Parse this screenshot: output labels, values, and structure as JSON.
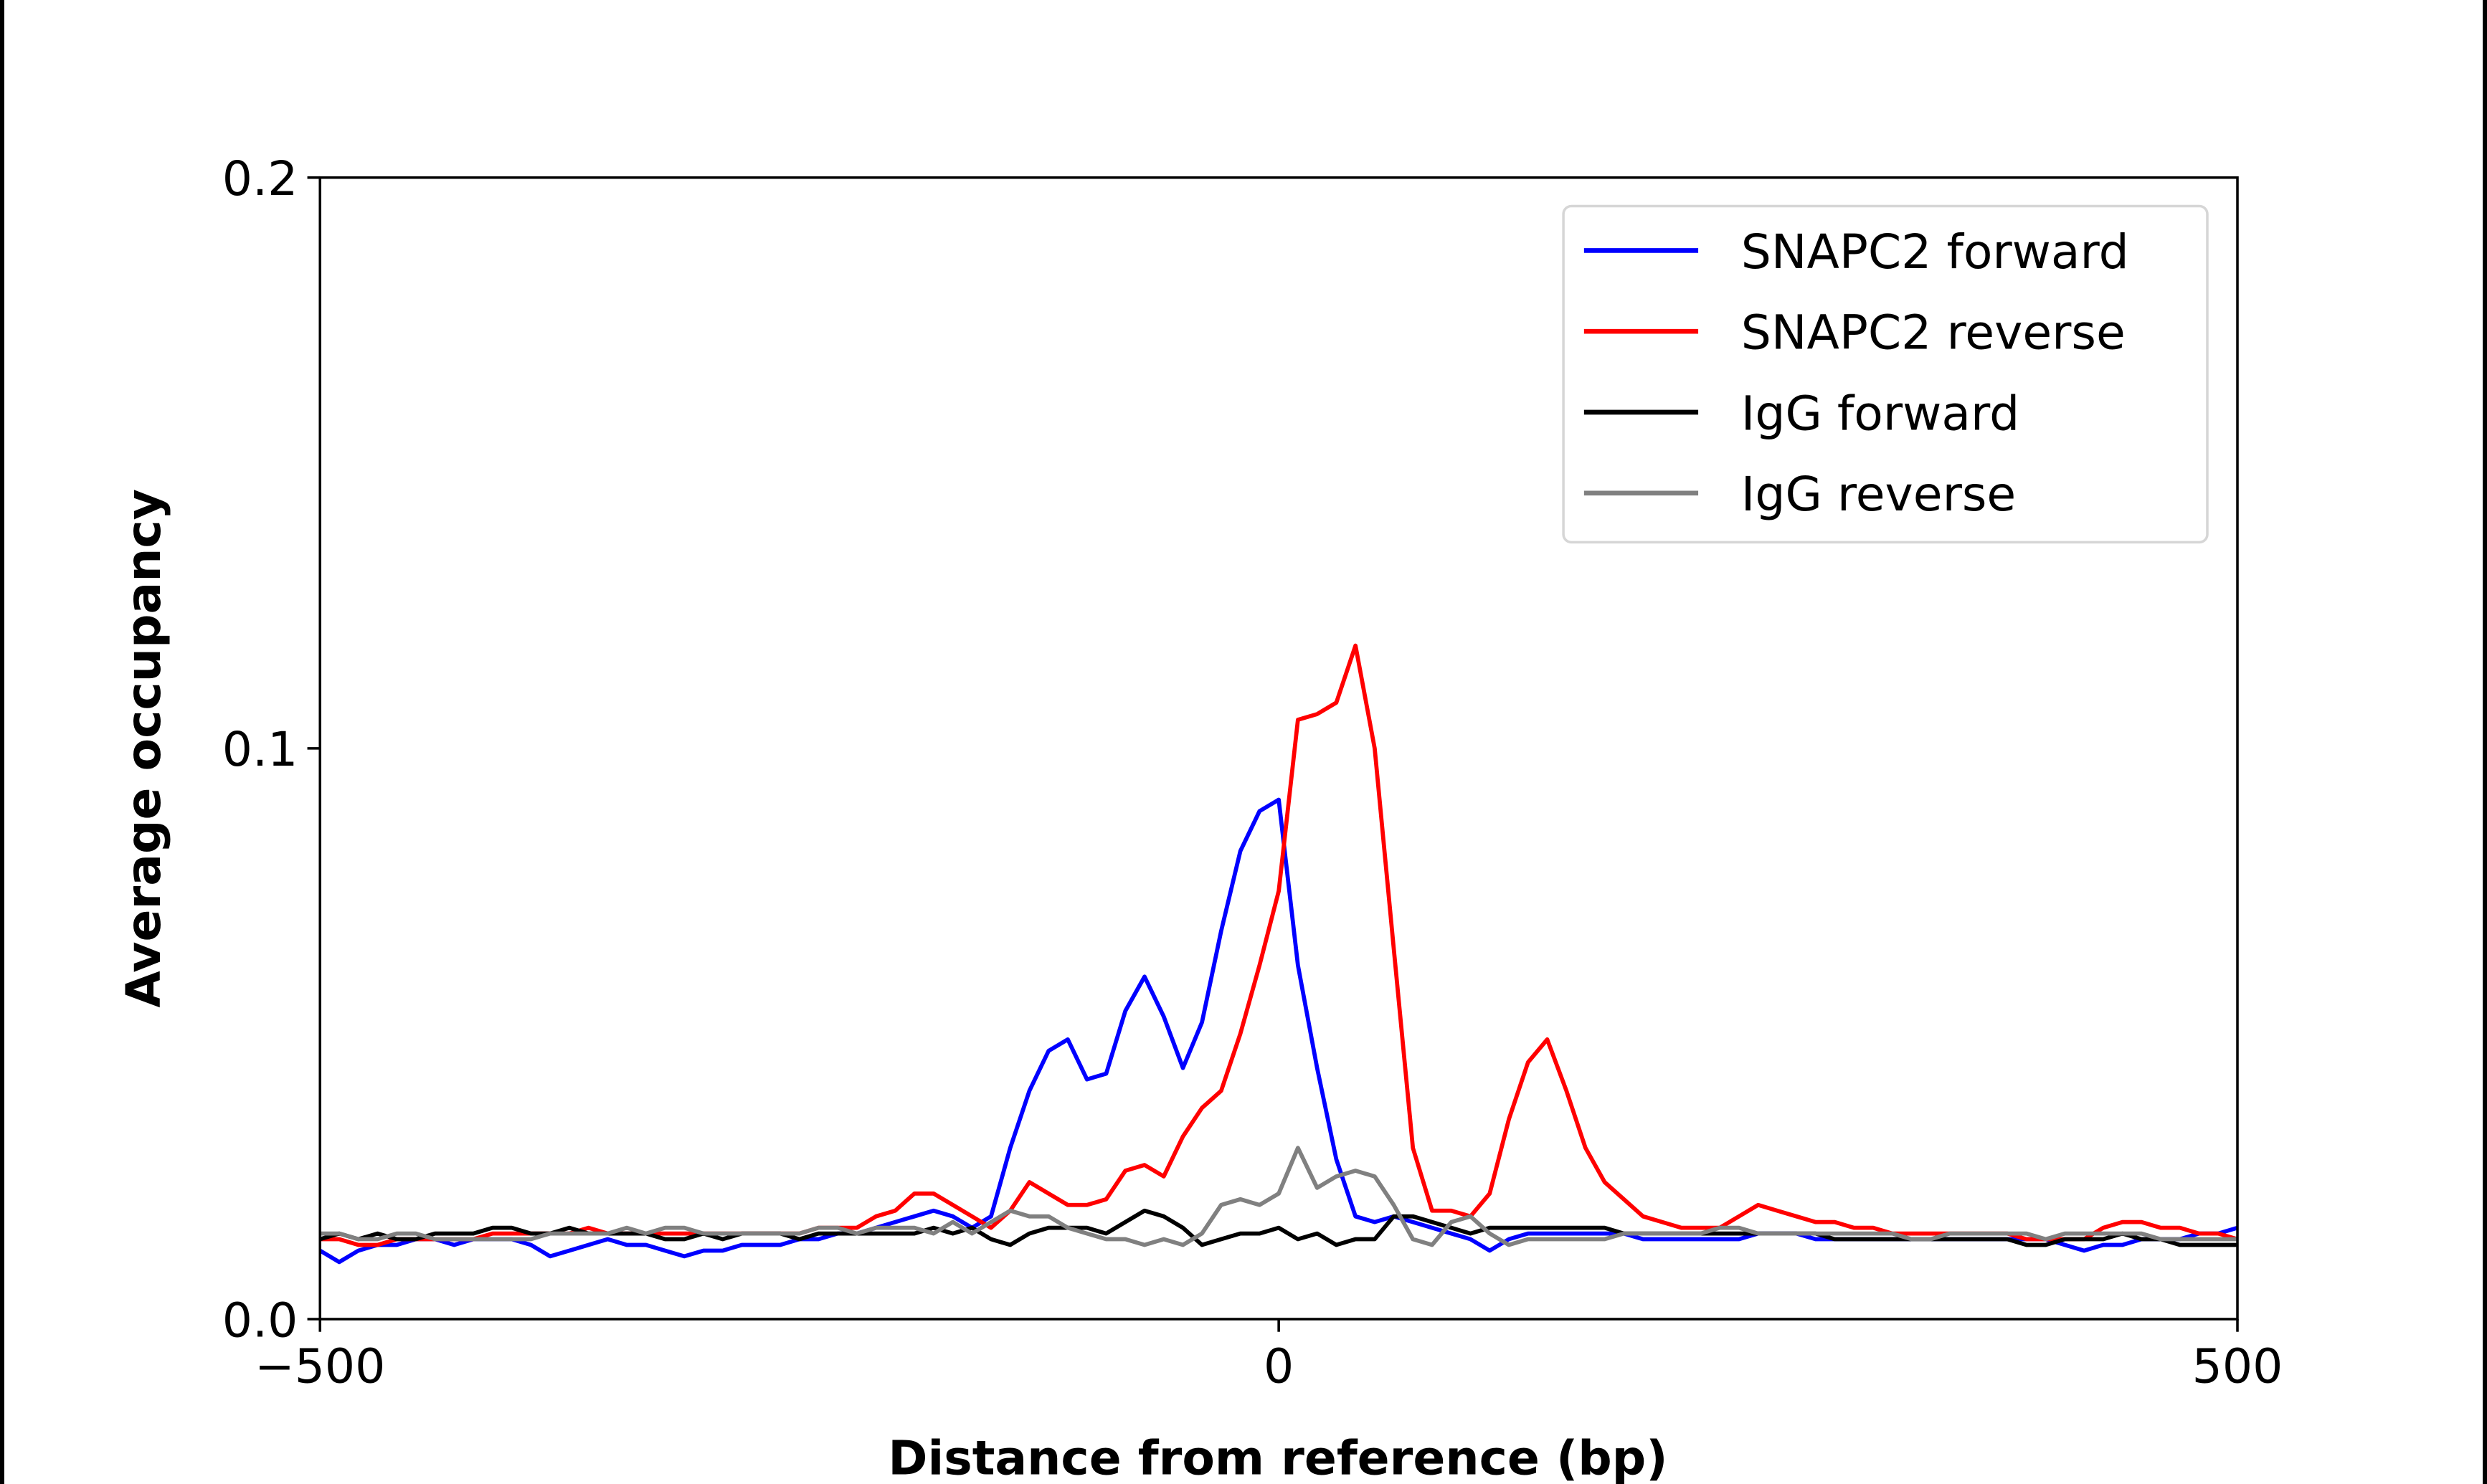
{
  "chart_data": {
    "type": "line",
    "title": "",
    "xlabel": "Distance from reference (bp)",
    "ylabel": "Average occupancy",
    "xlim": [
      -500,
      500
    ],
    "ylim": [
      0.0,
      0.2
    ],
    "xticks": [
      -500,
      0,
      500
    ],
    "xtick_labels": [
      "−500",
      "0",
      "500"
    ],
    "yticks": [
      0.0,
      0.1,
      0.2
    ],
    "ytick_labels": [
      "0.0",
      "0.1",
      "0.2"
    ],
    "grid": false,
    "legend_position": "top-right",
    "x": [
      -500,
      -490,
      -480,
      -470,
      -460,
      -450,
      -440,
      -430,
      -420,
      -410,
      -400,
      -390,
      -380,
      -370,
      -360,
      -350,
      -340,
      -330,
      -320,
      -310,
      -300,
      -290,
      -280,
      -270,
      -260,
      -250,
      -240,
      -230,
      -220,
      -210,
      -200,
      -190,
      -180,
      -170,
      -160,
      -150,
      -140,
      -130,
      -120,
      -110,
      -100,
      -90,
      -80,
      -70,
      -60,
      -50,
      -40,
      -30,
      -20,
      -10,
      0,
      10,
      20,
      30,
      40,
      50,
      60,
      70,
      80,
      90,
      100,
      110,
      120,
      130,
      140,
      150,
      160,
      170,
      180,
      190,
      200,
      210,
      220,
      230,
      240,
      250,
      260,
      270,
      280,
      290,
      300,
      310,
      320,
      330,
      340,
      350,
      360,
      370,
      380,
      390,
      400,
      410,
      420,
      430,
      440,
      450,
      460,
      470,
      480,
      490,
      500
    ],
    "series": [
      {
        "name": "SNAPC2 forward",
        "color": "#0000ff",
        "values": [
          0.012,
          0.01,
          0.012,
          0.013,
          0.013,
          0.014,
          0.014,
          0.013,
          0.014,
          0.014,
          0.014,
          0.013,
          0.011,
          0.012,
          0.013,
          0.014,
          0.013,
          0.013,
          0.012,
          0.011,
          0.012,
          0.012,
          0.013,
          0.013,
          0.013,
          0.014,
          0.014,
          0.015,
          0.015,
          0.016,
          0.017,
          0.018,
          0.019,
          0.018,
          0.016,
          0.018,
          0.03,
          0.04,
          0.047,
          0.049,
          0.042,
          0.043,
          0.054,
          0.06,
          0.053,
          0.044,
          0.052,
          0.068,
          0.082,
          0.089,
          0.091,
          0.062,
          0.044,
          0.028,
          0.018,
          0.017,
          0.018,
          0.017,
          0.016,
          0.015,
          0.014,
          0.012,
          0.014,
          0.015,
          0.015,
          0.015,
          0.015,
          0.015,
          0.015,
          0.014,
          0.014,
          0.014,
          0.014,
          0.014,
          0.014,
          0.015,
          0.015,
          0.015,
          0.014,
          0.014,
          0.014,
          0.014,
          0.014,
          0.014,
          0.014,
          0.014,
          0.014,
          0.014,
          0.014,
          0.014,
          0.014,
          0.013,
          0.012,
          0.013,
          0.013,
          0.014,
          0.014,
          0.014,
          0.015,
          0.015,
          0.016
        ]
      },
      {
        "name": "SNAPC2 reverse",
        "color": "#ff0000",
        "values": [
          0.014,
          0.014,
          0.013,
          0.013,
          0.014,
          0.014,
          0.014,
          0.014,
          0.014,
          0.015,
          0.015,
          0.015,
          0.015,
          0.015,
          0.016,
          0.015,
          0.015,
          0.015,
          0.015,
          0.015,
          0.015,
          0.015,
          0.015,
          0.015,
          0.015,
          0.015,
          0.016,
          0.016,
          0.016,
          0.018,
          0.019,
          0.022,
          0.022,
          0.02,
          0.018,
          0.016,
          0.019,
          0.024,
          0.022,
          0.02,
          0.02,
          0.021,
          0.026,
          0.027,
          0.025,
          0.032,
          0.037,
          0.04,
          0.05,
          0.062,
          0.075,
          0.105,
          0.106,
          0.108,
          0.118,
          0.1,
          0.065,
          0.03,
          0.019,
          0.019,
          0.018,
          0.022,
          0.035,
          0.045,
          0.049,
          0.04,
          0.03,
          0.024,
          0.021,
          0.018,
          0.017,
          0.016,
          0.016,
          0.016,
          0.018,
          0.02,
          0.019,
          0.018,
          0.017,
          0.017,
          0.016,
          0.016,
          0.015,
          0.015,
          0.015,
          0.015,
          0.015,
          0.015,
          0.015,
          0.014,
          0.014,
          0.014,
          0.014,
          0.016,
          0.017,
          0.017,
          0.016,
          0.016,
          0.015,
          0.015,
          0.014
        ]
      },
      {
        "name": "IgG forward",
        "color": "#000000",
        "values": [
          0.014,
          0.015,
          0.014,
          0.015,
          0.014,
          0.014,
          0.015,
          0.015,
          0.015,
          0.016,
          0.016,
          0.015,
          0.015,
          0.016,
          0.015,
          0.015,
          0.015,
          0.015,
          0.014,
          0.014,
          0.015,
          0.014,
          0.015,
          0.015,
          0.015,
          0.014,
          0.015,
          0.015,
          0.015,
          0.015,
          0.015,
          0.015,
          0.016,
          0.015,
          0.016,
          0.014,
          0.013,
          0.015,
          0.016,
          0.016,
          0.016,
          0.015,
          0.017,
          0.019,
          0.018,
          0.016,
          0.013,
          0.014,
          0.015,
          0.015,
          0.016,
          0.014,
          0.015,
          0.013,
          0.014,
          0.014,
          0.018,
          0.018,
          0.017,
          0.016,
          0.015,
          0.016,
          0.016,
          0.016,
          0.016,
          0.016,
          0.016,
          0.016,
          0.015,
          0.015,
          0.015,
          0.015,
          0.015,
          0.015,
          0.015,
          0.015,
          0.015,
          0.015,
          0.015,
          0.014,
          0.014,
          0.014,
          0.014,
          0.014,
          0.014,
          0.014,
          0.014,
          0.014,
          0.014,
          0.013,
          0.013,
          0.014,
          0.014,
          0.014,
          0.015,
          0.014,
          0.014,
          0.013,
          0.013,
          0.013,
          0.013
        ]
      },
      {
        "name": "IgG reverse",
        "color": "#808080",
        "values": [
          0.015,
          0.015,
          0.014,
          0.014,
          0.015,
          0.015,
          0.014,
          0.014,
          0.014,
          0.014,
          0.014,
          0.014,
          0.015,
          0.015,
          0.015,
          0.015,
          0.016,
          0.015,
          0.016,
          0.016,
          0.015,
          0.015,
          0.015,
          0.015,
          0.015,
          0.015,
          0.016,
          0.016,
          0.015,
          0.016,
          0.016,
          0.016,
          0.015,
          0.017,
          0.015,
          0.017,
          0.019,
          0.018,
          0.018,
          0.016,
          0.015,
          0.014,
          0.014,
          0.013,
          0.014,
          0.013,
          0.015,
          0.02,
          0.021,
          0.02,
          0.022,
          0.03,
          0.023,
          0.025,
          0.026,
          0.025,
          0.02,
          0.014,
          0.013,
          0.017,
          0.018,
          0.015,
          0.013,
          0.014,
          0.014,
          0.014,
          0.014,
          0.014,
          0.015,
          0.015,
          0.015,
          0.015,
          0.015,
          0.016,
          0.016,
          0.015,
          0.015,
          0.015,
          0.015,
          0.015,
          0.015,
          0.015,
          0.015,
          0.014,
          0.014,
          0.015,
          0.015,
          0.015,
          0.015,
          0.015,
          0.014,
          0.015,
          0.015,
          0.015,
          0.015,
          0.015,
          0.014,
          0.014,
          0.014,
          0.014,
          0.014
        ]
      }
    ]
  }
}
